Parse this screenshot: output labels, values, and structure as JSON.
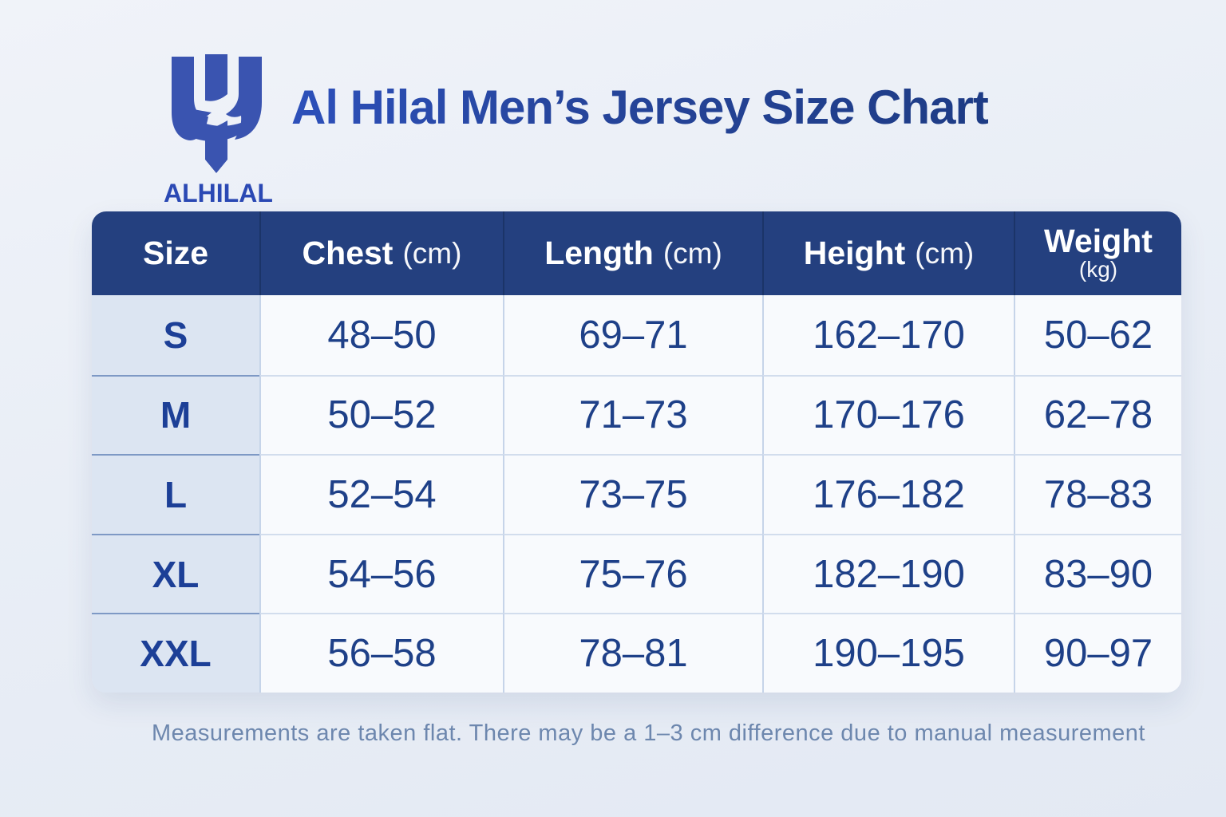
{
  "page": {
    "logo": {
      "wordmark": "ALHILAL",
      "icon": "al-hilal-crest"
    },
    "colors": {
      "header_bg": "#24407f",
      "header_text": "#ffffff",
      "size_column_bg": "#dce5f2",
      "cell_bg": "#f8fafd",
      "data_text": "#1e4088",
      "title_blue_start": "#2d50ba",
      "title_blue_end": "#1e3c85",
      "logo_blue": "#3a54b0",
      "page_bg": "#e9eef6",
      "footnote_text": "#6d87ae"
    }
  },
  "chart_data": {
    "type": "table",
    "title": "Al Hilal Men’s Jersey Size Chart",
    "columns": [
      {
        "label": "Size",
        "unit": "",
        "stacked": false
      },
      {
        "label": "Chest",
        "unit": "(cm)",
        "stacked": false
      },
      {
        "label": "Length",
        "unit": "(cm)",
        "stacked": false
      },
      {
        "label": "Height",
        "unit": "(cm)",
        "stacked": false
      },
      {
        "label": "Weight",
        "unit": "(kg)",
        "stacked": true
      }
    ],
    "rows": [
      {
        "size": "S",
        "chest": "48–50",
        "length": "69–71",
        "height": "162–170",
        "weight": "50–62"
      },
      {
        "size": "M",
        "chest": "50–52",
        "length": "71–73",
        "height": "170–176",
        "weight": "62–78"
      },
      {
        "size": "L",
        "chest": "52–54",
        "length": "73–75",
        "height": "176–182",
        "weight": "78–83"
      },
      {
        "size": "XL",
        "chest": "54–56",
        "length": "75–76",
        "height": "182–190",
        "weight": "83–90"
      },
      {
        "size": "XXL",
        "chest": "56–58",
        "length": "78–81",
        "height": "190–195",
        "weight": "90–97"
      }
    ],
    "footnote": "Measurements are taken flat. There may be a 1–3 cm difference due to manual measurement"
  }
}
